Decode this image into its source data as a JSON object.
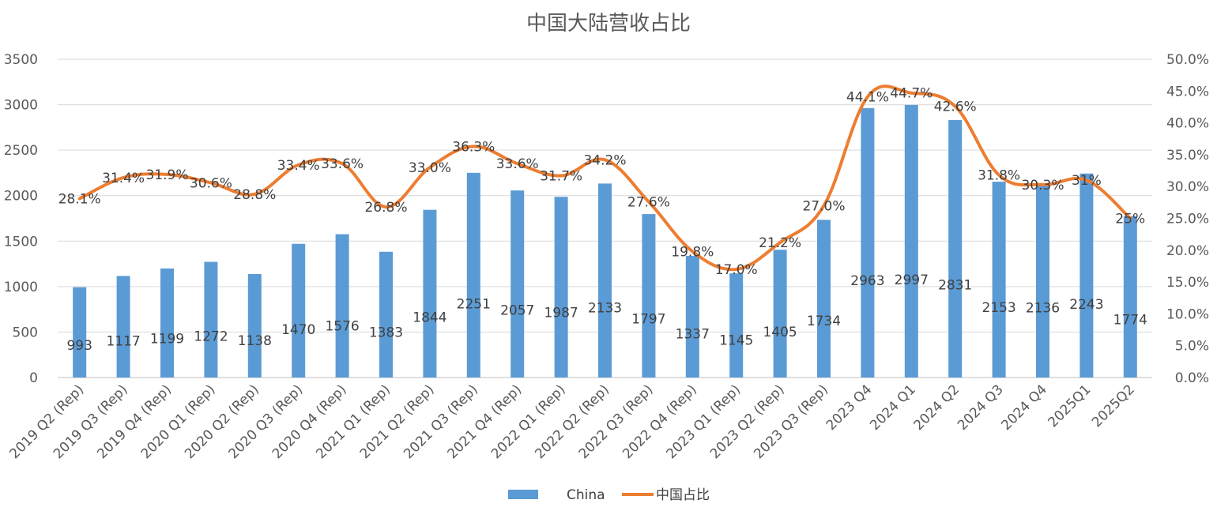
{
  "chart_data": {
    "type": "bar",
    "title": "中国大陆营收占比",
    "categories": [
      "2019 Q2 (Rep)",
      "2019 Q3 (Rep)",
      "2019 Q4 (Rep)",
      "2020 Q1 (Rep)",
      "2020 Q2 (Rep)",
      "2020 Q3 (Rep)",
      "2020 Q4 (Rep)",
      "2021 Q1 (Rep)",
      "2021 Q2 (Rep)",
      "2021 Q3 (Rep)",
      "2021 Q4 (Rep)",
      "2022 Q1 (Rep)",
      "2022 Q2 (Rep)",
      "2022 Q3 (Rep)",
      "2022 Q4 (Rep)",
      "2023 Q1 (Rep)",
      "2023 Q2 (Rep)",
      "2023 Q3 (Rep)",
      "2023 Q4",
      "2024 Q1",
      "2024 Q2",
      "2024 Q3",
      "2024 Q4",
      "2025Q1",
      "2025Q2"
    ],
    "series": [
      {
        "name": "China",
        "type": "bar",
        "axis": "left",
        "color": "#5b9bd5",
        "values": [
          993,
          1117,
          1199,
          1272,
          1138,
          1470,
          1576,
          1383,
          1844,
          2251,
          2057,
          1987,
          2133,
          1797,
          1337,
          1145,
          1405,
          1734,
          2963,
          2997,
          2831,
          2153,
          2136,
          2243,
          1774
        ],
        "labels": [
          "993",
          "1117",
          "1199",
          "1272",
          "1138",
          "1470",
          "1576",
          "1383",
          "1844",
          "2251",
          "2057",
          "1987",
          "2133",
          "1797",
          "1337",
          "1145",
          "1405",
          "1734",
          "2963",
          "2997",
          "2831",
          "2153",
          "2136",
          "2243",
          "1774"
        ]
      },
      {
        "name": "中国占比",
        "type": "line",
        "axis": "right",
        "color": "#ed7d31",
        "values": [
          28.1,
          31.4,
          31.9,
          30.6,
          28.8,
          33.4,
          33.6,
          26.8,
          33.0,
          36.3,
          33.6,
          31.7,
          34.2,
          27.6,
          19.8,
          17.0,
          21.2,
          27.0,
          44.1,
          44.7,
          42.6,
          31.8,
          30.3,
          31,
          25
        ],
        "labels": [
          "28.1%",
          "31.4%",
          "31.9%",
          "30.6%",
          "28.8%",
          "33.4%",
          "33.6%",
          "26.8%",
          "33.0%",
          "36.3%",
          "33.6%",
          "31.7%",
          "34.2%",
          "27.6%",
          "19.8%",
          "17.0%",
          "21.2%",
          "27.0%",
          "44.1%",
          "44.7%",
          "42.6%",
          "31.8%",
          "30.3%",
          "31%",
          "25%"
        ]
      }
    ],
    "y_left": {
      "min": 0,
      "max": 3500,
      "ticks": [
        "0",
        "500",
        "1000",
        "1500",
        "2000",
        "2500",
        "3000",
        "3500"
      ]
    },
    "y_right": {
      "min": 0,
      "max": 50,
      "ticks": [
        "0.0%",
        "5.0%",
        "10.0%",
        "15.0%",
        "20.0%",
        "25.0%",
        "30.0%",
        "35.0%",
        "40.0%",
        "45.0%",
        "50.0%"
      ]
    },
    "grid": true,
    "legend_position": "bottom"
  }
}
